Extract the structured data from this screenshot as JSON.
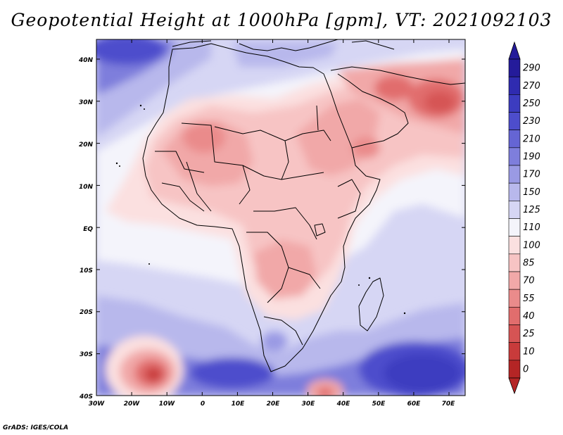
{
  "title": "Geopotential Height at 1000hPa [gpm], VT: 2021092103",
  "credit": "GrADS: IGES/COLA",
  "lat_labels": [
    "40N",
    "30N",
    "20N",
    "10N",
    "EQ",
    "10S",
    "20S",
    "30S",
    "40S"
  ],
  "lon_labels": [
    "30W",
    "20W",
    "10W",
    "0",
    "10E",
    "20E",
    "30E",
    "40E",
    "50E",
    "60E",
    "70E"
  ],
  "colorbar": {
    "levels": [
      "290",
      "270",
      "250",
      "230",
      "210",
      "190",
      "170",
      "150",
      "125",
      "110",
      "100",
      "85",
      "70",
      "55",
      "40",
      "25",
      "10",
      "0"
    ],
    "colors": [
      "#241b9a",
      "#2f2bb0",
      "#3c3cc0",
      "#4d4dcc",
      "#6565d4",
      "#7e7edc",
      "#9a9ae4",
      "#b8b8ec",
      "#d6d6f4",
      "#f4f4fb",
      "#fbe0e0",
      "#f7c4c4",
      "#f1a8a8",
      "#ea8b8b",
      "#e16d6d",
      "#d65454",
      "#c83b3b",
      "#b42525"
    ]
  },
  "palette": {
    "blue_dark": "#2f2bb0",
    "blue_mid": "#6565d4",
    "blue_light": "#b8b8ec",
    "blue_pale": "#d6d6f4",
    "white": "#f4f4fb",
    "red_pale": "#fbe0e0",
    "red_light": "#f7c4c4",
    "red_mid": "#f1a8a8",
    "red_strong": "#e16d6d",
    "red_dark": "#c83b3b"
  }
}
